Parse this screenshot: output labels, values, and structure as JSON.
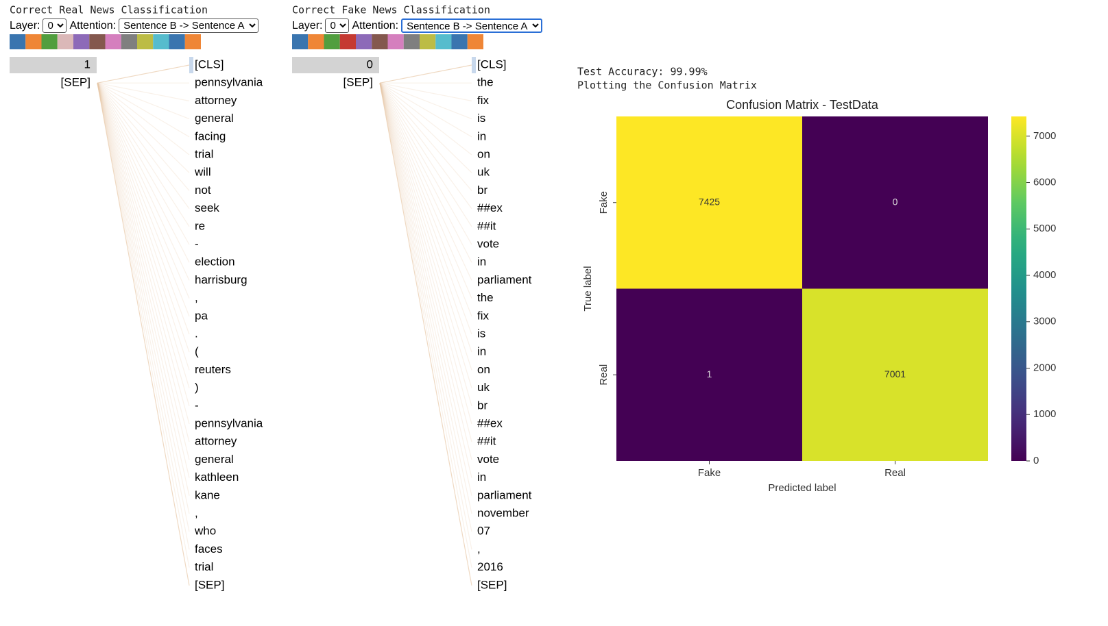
{
  "panels": [
    {
      "title": "Correct Real News Classification",
      "layer_label": "Layer:",
      "layer_value": "0",
      "attention_label": "Attention:",
      "attention_value": "Sentence B -> Sentence A",
      "head_colors": [
        "#3a75af",
        "#ef8636",
        "#519e3e",
        "#dbb8b8",
        "#8d6ab8",
        "#84584e",
        "#d57fbe",
        "#7f7f7f",
        "#bcbc45",
        "#56bccd",
        "#3a75af",
        "#ef8636"
      ],
      "left_tokens": [
        "1",
        "[SEP]"
      ],
      "right_tokens": [
        "[CLS]",
        "pennsylvania",
        "attorney",
        "general",
        "facing",
        "trial",
        "will",
        "not",
        "seek",
        "re",
        "-",
        "election",
        "harrisburg",
        ",",
        "pa",
        ".",
        "(",
        "reuters",
        ")",
        "-",
        "pennsylvania",
        "attorney",
        "general",
        "kathleen",
        "kane",
        ",",
        "who",
        "faces",
        "trial",
        "[SEP]"
      ]
    },
    {
      "title": "Correct Fake News Classification",
      "layer_label": "Layer:",
      "layer_value": "0",
      "attention_label": "Attention:",
      "attention_value": "Sentence B -> Sentence A",
      "head_colors": [
        "#3a75af",
        "#ef8636",
        "#519e3e",
        "#c53a32",
        "#8d6ab8",
        "#84584e",
        "#d57fbe",
        "#7f7f7f",
        "#bcbc45",
        "#56bccd",
        "#3a75af",
        "#ef8636"
      ],
      "left_tokens": [
        "0",
        "[SEP]"
      ],
      "right_tokens": [
        "[CLS]",
        "the",
        "fix",
        "is",
        "in",
        "on",
        "uk",
        "br",
        "##ex",
        "##it",
        "vote",
        "in",
        "parliament",
        "the",
        "fix",
        "is",
        "in",
        "on",
        "uk",
        "br",
        "##ex",
        "##it",
        "vote",
        "in",
        "parliament",
        "november",
        "07",
        ",",
        "2016",
        "[SEP]"
      ]
    }
  ],
  "output": {
    "lines": [
      "Test Accuracy: 99.99%",
      "Plotting the Confusion Matrix"
    ]
  },
  "chart_data": {
    "type": "heatmap",
    "title": "Confusion Matrix - TestData",
    "x_label": "Predicted label",
    "y_label": "True label",
    "x_categories": [
      "Fake",
      "Real"
    ],
    "y_categories": [
      "Fake",
      "Real"
    ],
    "values": [
      [
        7425,
        0
      ],
      [
        1,
        7001
      ]
    ],
    "colormap": "viridis",
    "zlim": [
      0,
      7425
    ],
    "zticks": [
      0,
      1000,
      2000,
      3000,
      4000,
      5000,
      6000,
      7000
    ]
  }
}
